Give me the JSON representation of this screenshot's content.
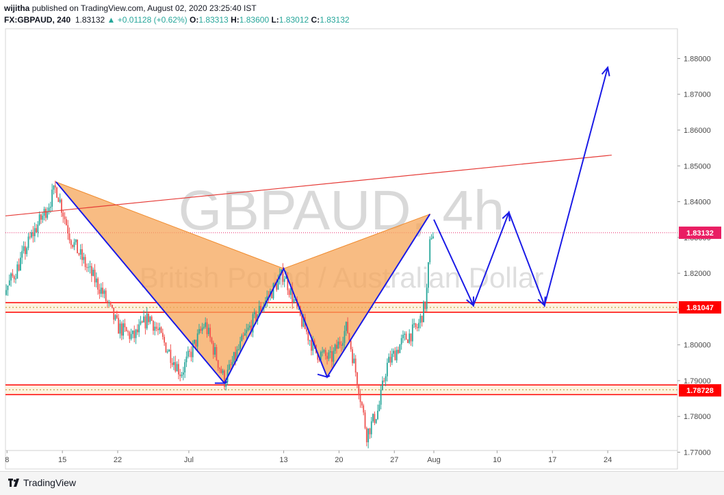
{
  "header": {
    "user": "wijitha",
    "published": "published on TradingView.com, August 02, 2020 23:25:40 IST",
    "symbol": "FX:GBPAUD, 240",
    "last": "1.83132",
    "change": "+0.01128 (+0.62%)",
    "o_label": "O:",
    "o": "1.83313",
    "h_label": "H:",
    "h": "1.83600",
    "l_label": "L:",
    "l": "1.83012",
    "c_label": "C:",
    "c": "1.83132"
  },
  "watermark": {
    "title": "GBPAUD, 4h",
    "subtitle": "British Pound / Australian Dollar"
  },
  "footer": {
    "brand": "TradingView"
  },
  "colors": {
    "up": "#26a69a",
    "down": "#ef5350",
    "pattern_fill": "#f5a55a",
    "pattern_line": "#f08a2c",
    "projection": "#1a1ae6",
    "trendline": "#e53935",
    "zone_line": "#ff0000",
    "zone_fill": "#fff3e0",
    "price_label_bg": "#e91e63"
  },
  "chart_data": {
    "type": "candlestick",
    "ylim": [
      1.7695,
      1.8895
    ],
    "y_ticks": [
      "1.77000",
      "1.78000",
      "1.79000",
      "1.80000",
      "1.81000",
      "1.82000",
      "1.83000",
      "1.84000",
      "1.85000",
      "1.86000",
      "1.87000",
      "1.88000"
    ],
    "y_tick_values": [
      1.77,
      1.78,
      1.79,
      1.8,
      1.81,
      1.82,
      1.83,
      1.84,
      1.85,
      1.86,
      1.87,
      1.88
    ],
    "x_ticks": [
      "8",
      "15",
      "22",
      "Jul",
      "13",
      "20",
      "27",
      "Aug",
      "10",
      "17",
      "24"
    ],
    "x_tick_days": [
      8,
      15,
      22,
      31,
      43,
      50,
      57,
      62,
      70,
      77,
      84
    ],
    "x_axis_note": "days counted from June 0",
    "price_labels": [
      {
        "text": "1.83132",
        "value": 1.83132,
        "bg": "#e91e63"
      },
      {
        "text": "1.81047",
        "value": 1.81047,
        "bg": "#ff0000"
      },
      {
        "text": "1.78728",
        "value": 1.78728,
        "bg": "#ff0000"
      }
    ],
    "zones": [
      {
        "top": 1.8118,
        "bottom": 1.8091
      },
      {
        "top": 1.7888,
        "bottom": 1.7861
      }
    ],
    "trendline": [
      {
        "day": 0,
        "price": 1.8343
      },
      {
        "day": 84.5,
        "price": 1.853
      }
    ],
    "current_price_line": 1.83132,
    "pattern": [
      {
        "day": 14.2,
        "price": 1.8455
      },
      {
        "day": 35.5,
        "price": 1.7893
      },
      {
        "day": 43.0,
        "price": 1.8213
      },
      {
        "day": 48.5,
        "price": 1.791
      },
      {
        "day": 61.5,
        "price": 1.8365
      }
    ],
    "projection": [
      {
        "day": 62.0,
        "price": 1.835
      },
      {
        "day": 67.0,
        "price": 1.811
      },
      {
        "day": 71.5,
        "price": 1.837
      },
      {
        "day": 76.0,
        "price": 1.811
      },
      {
        "day": 84.0,
        "price": 1.8775
      }
    ],
    "anchor_closes": [
      {
        "day": 1,
        "close": 1.8175
      },
      {
        "day": 3,
        "close": 1.812
      },
      {
        "day": 5,
        "close": 1.819
      },
      {
        "day": 7,
        "close": 1.8125
      },
      {
        "day": 9,
        "close": 1.82
      },
      {
        "day": 11,
        "close": 1.83
      },
      {
        "day": 13,
        "close": 1.838
      },
      {
        "day": 14.2,
        "close": 1.844
      },
      {
        "day": 16,
        "close": 1.83
      },
      {
        "day": 18,
        "close": 1.822
      },
      {
        "day": 20,
        "close": 1.815
      },
      {
        "day": 22,
        "close": 1.805
      },
      {
        "day": 24,
        "close": 1.802
      },
      {
        "day": 26,
        "close": 1.808
      },
      {
        "day": 28,
        "close": 1.8
      },
      {
        "day": 30,
        "close": 1.792
      },
      {
        "day": 31.5,
        "close": 1.799
      },
      {
        "day": 33,
        "close": 1.806
      },
      {
        "day": 35.5,
        "close": 1.79
      },
      {
        "day": 38,
        "close": 1.802
      },
      {
        "day": 40,
        "close": 1.81
      },
      {
        "day": 43,
        "close": 1.82
      },
      {
        "day": 45,
        "close": 1.808
      },
      {
        "day": 47,
        "close": 1.798
      },
      {
        "day": 49,
        "close": 1.796
      },
      {
        "day": 51,
        "close": 1.805
      },
      {
        "day": 52.5,
        "close": 1.788
      },
      {
        "day": 53.5,
        "close": 1.775
      },
      {
        "day": 55,
        "close": 1.782
      },
      {
        "day": 56,
        "close": 1.794
      },
      {
        "day": 58,
        "close": 1.801
      },
      {
        "day": 60,
        "close": 1.805
      },
      {
        "day": 61,
        "close": 1.812
      },
      {
        "day": 61.6,
        "close": 1.831
      },
      {
        "day": 62,
        "close": 1.8313
      }
    ]
  }
}
